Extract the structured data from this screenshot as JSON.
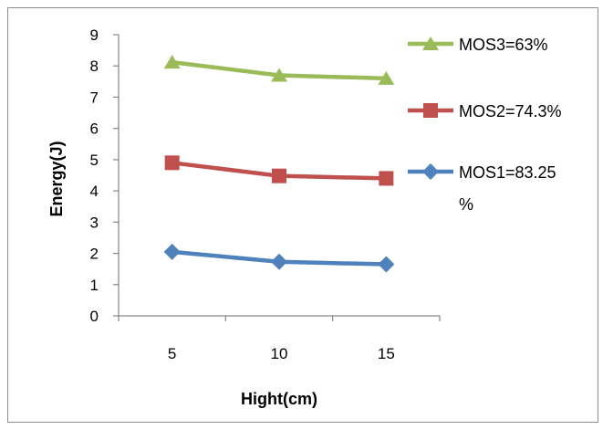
{
  "chart_data": {
    "type": "line",
    "title": "",
    "xlabel": "Hight(cm)",
    "ylabel": "Energy(J)",
    "categories": [
      "5",
      "10",
      "15"
    ],
    "ylim": [
      0,
      9
    ],
    "yticks": [
      "0",
      "1",
      "2",
      "3",
      "4",
      "5",
      "6",
      "7",
      "8",
      "9"
    ],
    "grid": false,
    "legend_position": "right",
    "series": [
      {
        "name": "MOS3=63%",
        "values": [
          8.12,
          7.7,
          7.6
        ],
        "color": "#9bbb59",
        "marker": "triangle"
      },
      {
        "name": "MOS2=74.3%",
        "values": [
          4.9,
          4.48,
          4.4
        ],
        "color": "#c0504d",
        "marker": "square"
      },
      {
        "name": "MOS1=83.25 %",
        "name_lines": [
          "MOS1=83.25",
          "%"
        ],
        "values": [
          2.05,
          1.73,
          1.65
        ],
        "color": "#4f81bd",
        "marker": "diamond"
      }
    ]
  }
}
